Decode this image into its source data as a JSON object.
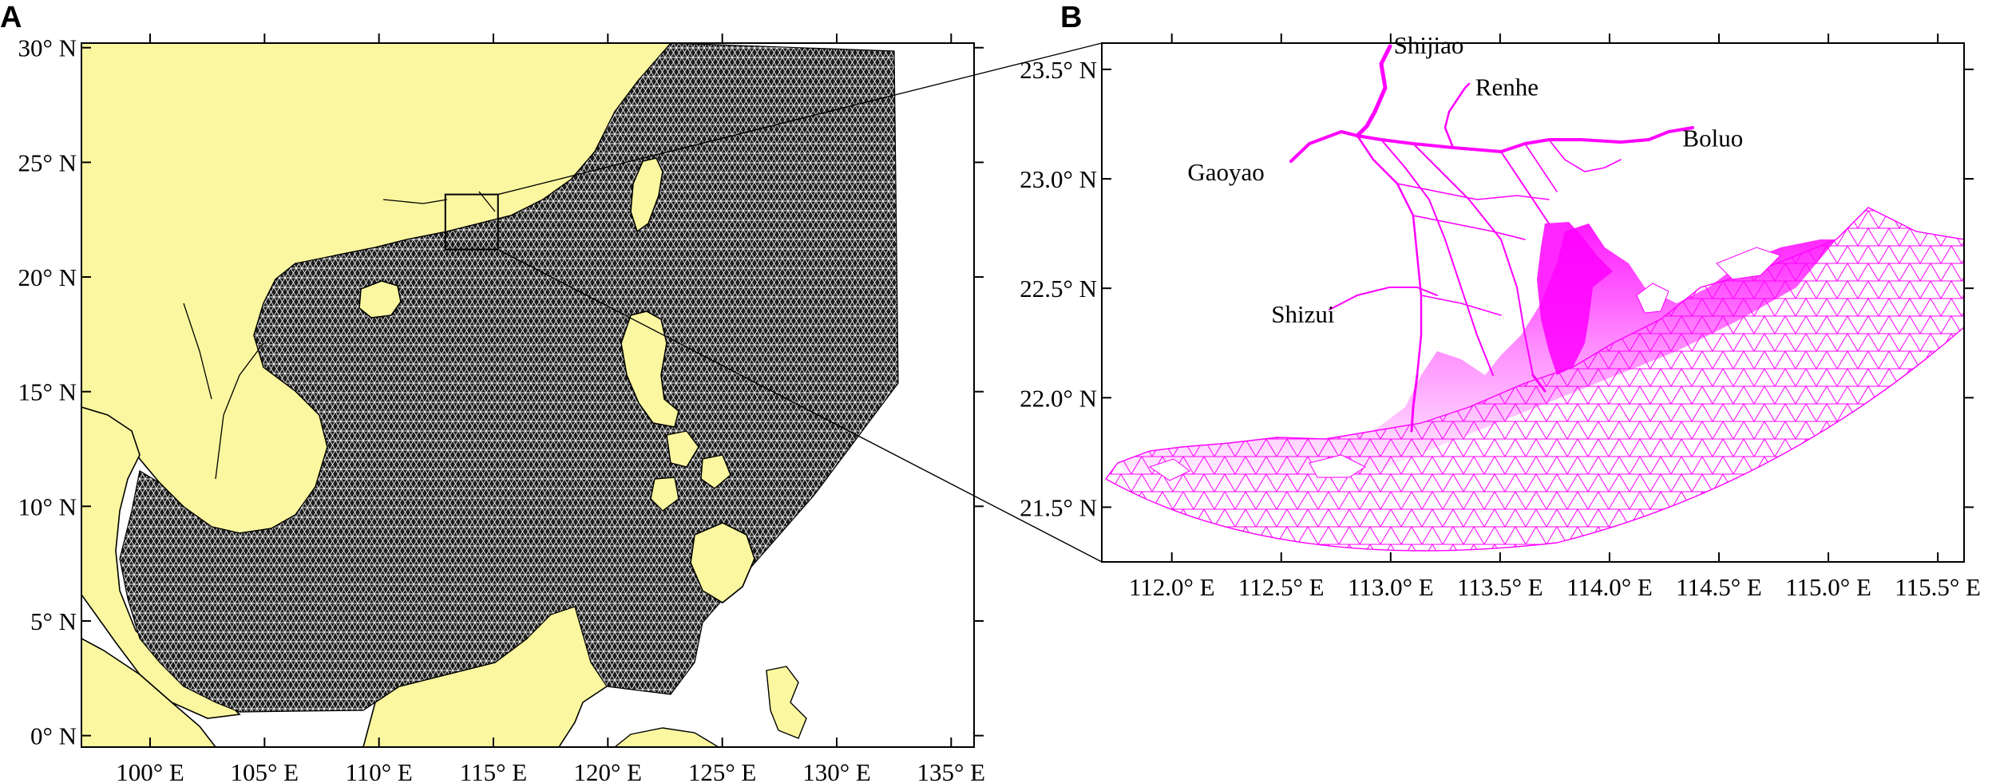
{
  "panels": {
    "a": {
      "label": "A",
      "x_ticks": [
        {
          "value": 100,
          "label": "100° E"
        },
        {
          "value": 105,
          "label": "105° E"
        },
        {
          "value": 110,
          "label": "110° E"
        },
        {
          "value": 115,
          "label": "115° E"
        },
        {
          "value": 120,
          "label": "120° E"
        },
        {
          "value": 125,
          "label": "125° E"
        },
        {
          "value": 130,
          "label": "130° E"
        },
        {
          "value": 135,
          "label": "135° E"
        }
      ],
      "y_ticks": [
        {
          "value": 0,
          "label": "0° N"
        },
        {
          "value": 5,
          "label": "5° N"
        },
        {
          "value": 10,
          "label": "10° N"
        },
        {
          "value": 15,
          "label": "15° N"
        },
        {
          "value": 20,
          "label": "20° N"
        },
        {
          "value": 25,
          "label": "25° N"
        },
        {
          "value": 30,
          "label": "30° N"
        }
      ],
      "lon_range": [
        97,
        136
      ],
      "lat_range": [
        -0.5,
        30.2
      ],
      "land_color": "#FBF7A0",
      "mesh_color": "#000000",
      "inset_box": {
        "lon": [
          112.9,
          115.2
        ],
        "lat": [
          21.2,
          23.6
        ]
      }
    },
    "b": {
      "label": "B",
      "x_ticks": [
        {
          "value": 112.0,
          "label": "112.0° E"
        },
        {
          "value": 112.5,
          "label": "112.5° E"
        },
        {
          "value": 113.0,
          "label": "113.0° E"
        },
        {
          "value": 113.5,
          "label": "113.5° E"
        },
        {
          "value": 114.0,
          "label": "114.0° E"
        },
        {
          "value": 114.5,
          "label": "114.5° E"
        },
        {
          "value": 115.0,
          "label": "115.0° E"
        },
        {
          "value": 115.5,
          "label": "115.5° E"
        }
      ],
      "y_ticks": [
        {
          "value": 21.5,
          "label": "21.5° N"
        },
        {
          "value": 22.0,
          "label": "22.0° N"
        },
        {
          "value": 22.5,
          "label": "22.5° N"
        },
        {
          "value": 23.0,
          "label": "23.0° N"
        },
        {
          "value": 23.5,
          "label": "23.5° N"
        }
      ],
      "lon_range": [
        111.68,
        115.62
      ],
      "lat_range": [
        21.25,
        23.62
      ],
      "mesh_color": "#FF00FF",
      "stations": [
        {
          "name": "Shijiao",
          "lon": 112.97,
          "lat": 23.55
        },
        {
          "name": "Renhe",
          "lon": 113.35,
          "lat": 23.36
        },
        {
          "name": "Boluo",
          "lon": 114.29,
          "lat": 23.17
        },
        {
          "name": "Gaoyao",
          "lon": 112.46,
          "lat": 23.03
        },
        {
          "name": "Shizui",
          "lon": 112.78,
          "lat": 22.41
        }
      ]
    }
  }
}
